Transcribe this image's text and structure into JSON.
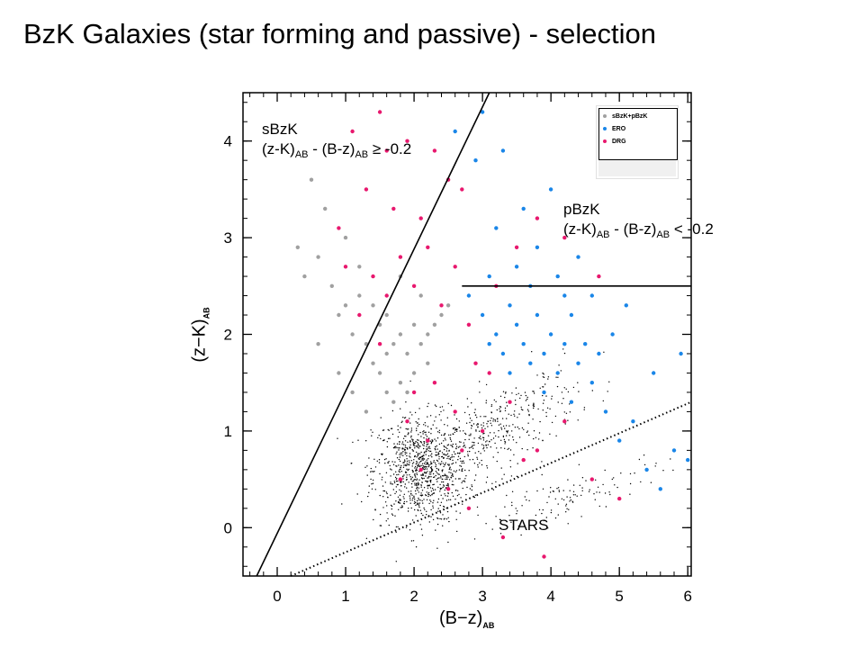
{
  "slide": {
    "title": "BzK Galaxies (star forming and passive) - selection"
  },
  "labels": {
    "sbzk_name": "sBzK",
    "sbzk_criterion_pre": "(z-K)",
    "sbzk_sub1": "AB",
    "sbzk_criterion_mid": " - (B-z)",
    "sbzk_sub2": "AB",
    "sbzk_criterion_post": " ≥ -0.2",
    "pbzk_name": "pBzK",
    "pbzk_criterion_pre": "(z-K)",
    "pbzk_sub1": "AB",
    "pbzk_criterion_mid": " - (B-z)",
    "pbzk_sub2": "AB",
    "pbzk_criterion_post": " < -0.2",
    "stars": "STARS"
  },
  "chart_data": {
    "type": "scatter",
    "xlabel_main": "(B−z)",
    "xlabel_sub": "AB",
    "ylabel_main": "(z−K)",
    "ylabel_sub": "AB",
    "xlim": [
      -0.5,
      6.05
    ],
    "ylim": [
      -0.5,
      4.5
    ],
    "xticks": [
      "0",
      "1",
      "2",
      "3",
      "4",
      "5",
      "6"
    ],
    "yticks": [
      "0",
      "1",
      "2",
      "3",
      "4"
    ],
    "grid": false,
    "legend_position": "top-right",
    "legend": [
      {
        "label": "sBzK+pBzK",
        "color": "#a0a0a0"
      },
      {
        "label": "ERO",
        "color": "#1a86e8"
      },
      {
        "label": "DRG",
        "color": "#e8186e"
      }
    ],
    "colors": {
      "field": "#000000",
      "bzk": "#a0a0a0",
      "ero": "#1a86e8",
      "drg": "#e8186e"
    },
    "boundaries": [
      {
        "name": "sBzK selection line",
        "style": "solid",
        "points": [
          [
            -0.3,
            -0.5
          ],
          [
            3.1,
            4.5
          ]
        ]
      },
      {
        "name": "pBzK horizontal cut",
        "style": "solid",
        "points": [
          [
            2.7,
            2.5
          ],
          [
            6.05,
            2.5
          ]
        ]
      },
      {
        "name": "stellar locus",
        "style": "dotted",
        "points": [
          [
            0.2,
            -0.5
          ],
          [
            6.05,
            1.3
          ]
        ]
      }
    ],
    "series": [
      {
        "name": "sBzK+pBzK",
        "color": "#a0a0a0",
        "values": [
          [
            0.3,
            2.9
          ],
          [
            0.4,
            2.6
          ],
          [
            0.6,
            2.8
          ],
          [
            0.8,
            2.5
          ],
          [
            0.9,
            2.2
          ],
          [
            1.0,
            2.3
          ],
          [
            1.1,
            2.0
          ],
          [
            1.2,
            2.4
          ],
          [
            1.3,
            1.9
          ],
          [
            1.4,
            1.7
          ],
          [
            1.5,
            1.6
          ],
          [
            1.5,
            2.1
          ],
          [
            1.6,
            1.4
          ],
          [
            1.6,
            1.8
          ],
          [
            1.7,
            1.3
          ],
          [
            1.7,
            1.9
          ],
          [
            1.8,
            1.5
          ],
          [
            1.8,
            2.0
          ],
          [
            1.9,
            1.4
          ],
          [
            1.9,
            1.8
          ],
          [
            2.0,
            1.6
          ],
          [
            2.0,
            2.1
          ],
          [
            2.1,
            1.9
          ],
          [
            2.2,
            2.0
          ],
          [
            2.2,
            1.7
          ],
          [
            2.3,
            2.1
          ],
          [
            2.4,
            2.2
          ],
          [
            2.5,
            2.3
          ],
          [
            1.2,
            2.7
          ],
          [
            1.0,
            3.0
          ],
          [
            0.7,
            3.3
          ],
          [
            0.5,
            3.6
          ],
          [
            1.3,
            1.2
          ],
          [
            1.1,
            1.4
          ],
          [
            1.4,
            2.3
          ],
          [
            1.6,
            2.2
          ],
          [
            2.1,
            2.4
          ],
          [
            1.8,
            2.6
          ],
          [
            0.6,
            1.9
          ],
          [
            0.9,
            1.6
          ]
        ]
      },
      {
        "name": "ERO",
        "color": "#1a86e8",
        "values": [
          [
            2.8,
            2.4
          ],
          [
            3.0,
            2.2
          ],
          [
            3.1,
            2.6
          ],
          [
            3.2,
            2.0
          ],
          [
            3.3,
            1.8
          ],
          [
            3.4,
            2.3
          ],
          [
            3.5,
            2.1
          ],
          [
            3.6,
            1.9
          ],
          [
            3.7,
            1.7
          ],
          [
            3.8,
            2.2
          ],
          [
            3.9,
            1.8
          ],
          [
            4.0,
            2.0
          ],
          [
            4.1,
            1.6
          ],
          [
            4.2,
            1.9
          ],
          [
            4.3,
            2.2
          ],
          [
            4.4,
            1.7
          ],
          [
            4.5,
            1.9
          ],
          [
            4.6,
            1.5
          ],
          [
            4.7,
            1.8
          ],
          [
            3.5,
            2.7
          ],
          [
            3.8,
            2.9
          ],
          [
            4.1,
            2.6
          ],
          [
            4.4,
            2.8
          ],
          [
            4.6,
            2.4
          ],
          [
            3.2,
            3.1
          ],
          [
            3.6,
            3.3
          ],
          [
            4.0,
            3.5
          ],
          [
            2.9,
            3.8
          ],
          [
            3.3,
            3.9
          ],
          [
            2.6,
            4.1
          ],
          [
            3.0,
            4.3
          ],
          [
            4.8,
            1.2
          ],
          [
            5.0,
            0.9
          ],
          [
            5.2,
            1.1
          ],
          [
            5.4,
            0.6
          ],
          [
            5.6,
            0.4
          ],
          [
            5.8,
            0.8
          ],
          [
            6.0,
            0.7
          ],
          [
            5.5,
            1.6
          ],
          [
            5.9,
            1.8
          ],
          [
            4.9,
            2.0
          ],
          [
            5.1,
            2.3
          ],
          [
            3.9,
            1.4
          ],
          [
            4.3,
            1.3
          ],
          [
            3.4,
            1.6
          ],
          [
            4.2,
            2.4
          ],
          [
            3.7,
            2.5
          ],
          [
            3.1,
            1.9
          ]
        ]
      },
      {
        "name": "DRG",
        "color": "#e8186e",
        "values": [
          [
            1.1,
            4.1
          ],
          [
            1.5,
            4.3
          ],
          [
            1.9,
            4.0
          ],
          [
            2.3,
            3.9
          ],
          [
            1.3,
            3.5
          ],
          [
            1.7,
            3.3
          ],
          [
            2.1,
            3.2
          ],
          [
            0.9,
            3.1
          ],
          [
            1.0,
            2.7
          ],
          [
            1.4,
            2.6
          ],
          [
            1.8,
            2.8
          ],
          [
            2.2,
            2.9
          ],
          [
            2.6,
            2.7
          ],
          [
            1.2,
            2.2
          ],
          [
            1.6,
            2.4
          ],
          [
            2.0,
            2.5
          ],
          [
            2.4,
            2.3
          ],
          [
            2.8,
            2.1
          ],
          [
            3.2,
            2.5
          ],
          [
            3.5,
            2.9
          ],
          [
            3.8,
            3.2
          ],
          [
            4.2,
            3.0
          ],
          [
            2.7,
            3.5
          ],
          [
            2.9,
            1.7
          ],
          [
            1.9,
            1.1
          ],
          [
            2.2,
            0.9
          ],
          [
            2.6,
            1.2
          ],
          [
            3.0,
            1.0
          ],
          [
            3.4,
            1.3
          ],
          [
            3.8,
            0.8
          ],
          [
            4.2,
            1.1
          ],
          [
            4.6,
            0.5
          ],
          [
            5.0,
            0.3
          ],
          [
            2.1,
            0.6
          ],
          [
            2.5,
            0.4
          ],
          [
            2.8,
            0.2
          ],
          [
            3.3,
            -0.1
          ],
          [
            3.9,
            -0.3
          ],
          [
            1.8,
            0.5
          ],
          [
            3.6,
            0.7
          ],
          [
            4.7,
            2.6
          ],
          [
            2.3,
            1.5
          ],
          [
            1.5,
            1.9
          ],
          [
            2.0,
            1.4
          ],
          [
            2.7,
            0.8
          ],
          [
            3.1,
            1.6
          ],
          [
            1.6,
            3.9
          ],
          [
            2.5,
            3.6
          ]
        ]
      }
    ],
    "field_cloud": [
      {
        "name": "galaxies",
        "color": "#000000",
        "center": [
          2.1,
          0.6
        ],
        "spread": [
          0.35,
          0.28
        ],
        "count": 900
      },
      {
        "name": "galaxies-tail",
        "color": "#000000",
        "center": [
          3.2,
          1.0
        ],
        "spread": [
          0.6,
          0.22
        ],
        "count": 400
      },
      {
        "name": "stellar-locus",
        "color": "#000000",
        "center": [
          4.2,
          0.3
        ],
        "spread": [
          0.7,
          0.12
        ],
        "count": 120
      }
    ]
  }
}
